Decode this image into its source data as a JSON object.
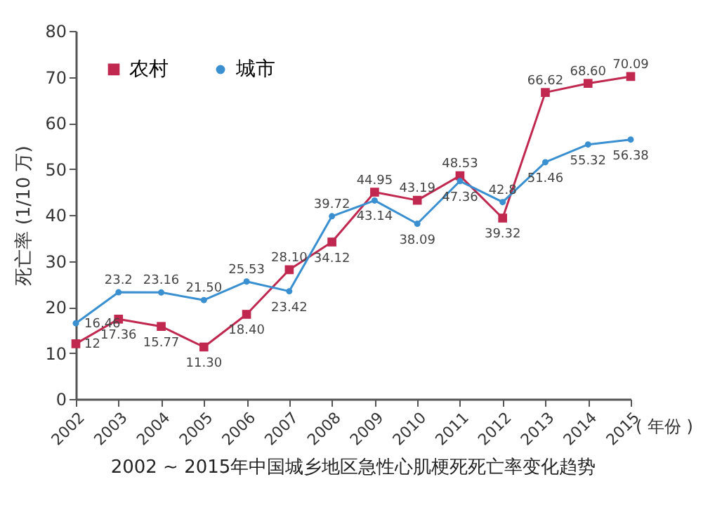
{
  "chart_data": {
    "type": "line",
    "title": "2002 ~ 2015年中国城乡地区急性心肌梗死死亡率变化趋势",
    "xlabel": "( 年份 )",
    "ylabel": "死亡率 (1/10 万)",
    "categories": [
      "2002",
      "2003",
      "2004",
      "2005",
      "2006",
      "2007",
      "2008",
      "2009",
      "2010",
      "2011",
      "2012",
      "2013",
      "2014",
      "2015"
    ],
    "series": [
      {
        "name": "农村",
        "color": "#c0284f",
        "marker": "square",
        "values": [
          12,
          17.36,
          15.77,
          11.3,
          18.4,
          28.1,
          34.12,
          44.95,
          43.19,
          48.53,
          39.32,
          66.62,
          68.6,
          70.09
        ],
        "value_labels": [
          "12",
          "17.36",
          "15.77",
          "11.30",
          "18.40",
          "28.10",
          "34.12",
          "44.95",
          "43.19",
          "48.53",
          "39.32",
          "66.62",
          "68.60",
          "70.09"
        ]
      },
      {
        "name": "城市",
        "color": "#3a8fd0",
        "marker": "circle",
        "values": [
          16.46,
          23.2,
          23.16,
          21.5,
          25.53,
          23.42,
          39.72,
          43.14,
          38.09,
          47.36,
          42.8,
          51.46,
          55.32,
          56.38
        ],
        "value_labels": [
          "16.46",
          "23.2",
          "23.16",
          "21.50",
          "25.53",
          "23.42",
          "39.72",
          "43.14",
          "38.09",
          "47.36",
          "42.8",
          "51.46",
          "55.32",
          "56.38"
        ]
      }
    ],
    "ylim": [
      0,
      80
    ],
    "yticks": [
      0,
      10,
      20,
      30,
      40,
      50,
      60,
      70,
      80
    ],
    "grid": false,
    "legend": "top left",
    "line_style": "solid"
  }
}
